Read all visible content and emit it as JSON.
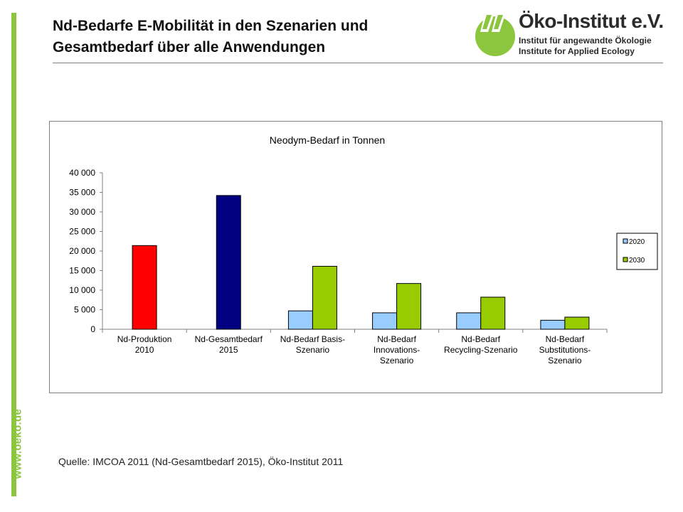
{
  "header": {
    "title_line1": "Nd-Bedarfe E-Mobilität in den Szenarien und",
    "title_line2": "Gesamtbedarf über alle Anwendungen"
  },
  "logo": {
    "name": "Öko-Institut e.V.",
    "line1": "Institut für angewandte Ökologie",
    "line2": "Institute for Applied Ecology",
    "color": "#8cc63f"
  },
  "sidebar": {
    "url": "www.oeko.de"
  },
  "footer": {
    "source": "Quelle: IMCOA 2011 (Nd-Gesamtbedarf 2015), Öko-Institut 2011"
  },
  "chart_data": {
    "type": "bar",
    "title": "Neodym-Bedarf in Tonnen",
    "xlabel": "",
    "ylabel": "",
    "ylim": [
      0,
      40000
    ],
    "yticks": [
      "0",
      "5 000",
      "10 000",
      "15 000",
      "20 000",
      "25 000",
      "30 000",
      "35 000",
      "40 000"
    ],
    "grid": false,
    "legend_position": "right",
    "categories": [
      [
        "Nd-Produktion",
        "2010"
      ],
      [
        "Nd-Gesamtbedarf",
        "2015"
      ],
      [
        "Nd-Bedarf Basis-",
        "Szenario"
      ],
      [
        "Nd-Bedarf",
        "Innovations-",
        "Szenario"
      ],
      [
        "Nd-Bedarf",
        "Recycling-Szenario"
      ],
      [
        "Nd-Bedarf",
        "Substitutions-",
        "Szenario"
      ]
    ],
    "single_bars": [
      {
        "category": 0,
        "value": 21400,
        "color": "#ff0000"
      },
      {
        "category": 1,
        "value": 34200,
        "color": "#000080"
      }
    ],
    "series": [
      {
        "name": "2020",
        "color": "#99ccff",
        "values": [
          null,
          null,
          4700,
          4200,
          4200,
          2300
        ]
      },
      {
        "name": "2030",
        "color": "#99cc00",
        "values": [
          null,
          null,
          16100,
          11700,
          8200,
          3100
        ]
      }
    ]
  }
}
